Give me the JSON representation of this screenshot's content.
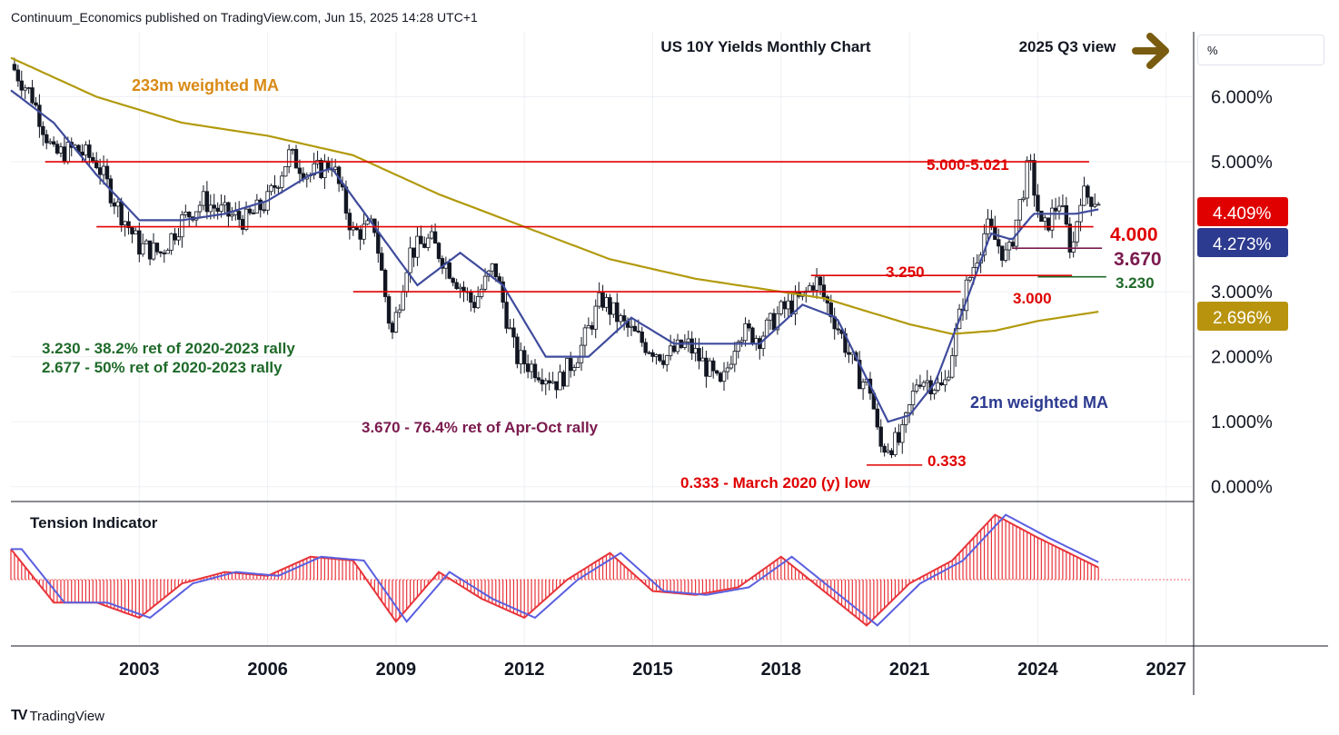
{
  "header": {
    "published_by": "Continuum_Economics published on TradingView.com, Jun 15, 2025 14:28 UTC+1"
  },
  "footer": {
    "brand": "TradingView"
  },
  "unit_label": "%",
  "colors": {
    "ma233": "#b29a0d",
    "ma21": "#3f4b9c",
    "red_line": "#e00000",
    "green_label": "#1f6a2a",
    "purple_label": "#7a1a4e",
    "up_candle": "#ffffff",
    "down_candle": "#131722",
    "tension_up": "#e8343a",
    "tension_signal": "#5a5fe0",
    "arrow": "#7a5c10"
  },
  "annotations": {
    "title": "US 10Y Yields Monthly Chart",
    "view": "2025 Q3 view",
    "ma233_label": "233m weighted MA",
    "ma21_label": "21m weighted MA",
    "resistance_label": "5.000-5.021",
    "level_4000": "4.000",
    "level_3670": "3.670",
    "level_3250": "3.250",
    "level_3230": "3.230",
    "level_3000": "3.000",
    "level_0333": "0.333",
    "fib1": "3.230 - 38.2% ret of 2020-2023 rally",
    "fib2": "2.677 - 50% ret of 2020-2023 rally",
    "fib3": "3.670 - 76.4% ret of Apr-Oct rally",
    "low_note": "0.333 - March 2020 (y) low",
    "tension_title": "Tension Indicator"
  },
  "price_badges": {
    "last": "4.409%",
    "ma21": "4.273%",
    "ma233": "2.696%"
  },
  "chart_data": [
    {
      "type": "candlestick",
      "title": "US 10Y Yields Monthly Chart",
      "y_unit": "%",
      "ylim": [
        -0.2,
        7.0
      ],
      "yticks": [
        "6.000%",
        "5.000%",
        "3.000%",
        "2.000%",
        "1.000%",
        "0.000%"
      ],
      "ytick_values": [
        6,
        5,
        3,
        2,
        1,
        0
      ],
      "xlim": [
        2000.0,
        2027.6
      ],
      "xticks": [
        "2003",
        "2006",
        "2009",
        "2012",
        "2015",
        "2018",
        "2021",
        "2024",
        "2027"
      ],
      "xtick_values": [
        2003,
        2006,
        2009,
        2012,
        2015,
        2018,
        2021,
        2024,
        2027
      ],
      "grid": true,
      "series": [
        {
          "name": "",
          "x": [
            2000.0,
            2000.5,
            2001.0,
            2001.5,
            2002.0,
            2002.5,
            2003.0,
            2003.5,
            2004.0,
            2004.5,
            2005.0,
            2005.5,
            2006.0,
            2006.5,
            2007.0,
            2007.5,
            2008.0,
            2008.5,
            2008.9,
            2009.3,
            2009.8,
            2010.3,
            2010.8,
            2011.3,
            2011.8,
            2012.3,
            2012.8,
            2013.3,
            2013.8,
            2014.3,
            2014.8,
            2015.3,
            2015.8,
            2016.3,
            2016.6,
            2017.0,
            2017.5,
            2018.0,
            2018.5,
            2018.8,
            2019.3,
            2019.8,
            2020.1,
            2020.3,
            2020.8,
            2021.2,
            2021.8,
            2022.3,
            2022.8,
            2023.3,
            2023.8,
            2024.1,
            2024.5,
            2024.8,
            2025.0,
            2025.45
          ],
          "y": [
            6.5,
            6.0,
            5.1,
            5.2,
            5.0,
            4.3,
            3.7,
            3.6,
            4.1,
            4.4,
            4.2,
            4.1,
            4.4,
            5.1,
            4.8,
            5.0,
            3.9,
            4.0,
            2.3,
            3.6,
            3.8,
            3.3,
            2.8,
            3.4,
            2.0,
            1.8,
            1.6,
            2.1,
            2.9,
            2.5,
            2.2,
            2.0,
            2.2,
            1.8,
            1.5,
            2.4,
            2.3,
            2.7,
            2.9,
            3.2,
            2.5,
            1.7,
            1.5,
            0.6,
            0.7,
            1.7,
            1.5,
            3.0,
            4.0,
            3.5,
            5.0,
            3.9,
            4.4,
            3.6,
            4.5,
            4.41
          ]
        }
      ],
      "moving_averages": [
        {
          "name": "233m weighted MA",
          "x": [
            2000.0,
            2002.0,
            2004.0,
            2006.0,
            2008.0,
            2010.0,
            2012.0,
            2014.0,
            2016.0,
            2018.0,
            2019.0,
            2020.0,
            2021.0,
            2022.0,
            2023.0,
            2024.0,
            2025.45
          ],
          "y": [
            6.6,
            6.0,
            5.6,
            5.4,
            5.1,
            4.5,
            4.0,
            3.5,
            3.2,
            3.0,
            2.9,
            2.7,
            2.5,
            2.35,
            2.4,
            2.55,
            2.696
          ]
        },
        {
          "name": "21m weighted MA",
          "x": [
            2000.0,
            2001.0,
            2002.0,
            2003.0,
            2004.0,
            2005.0,
            2006.0,
            2007.0,
            2007.5,
            2008.5,
            2009.5,
            2010.5,
            2011.5,
            2012.5,
            2013.5,
            2014.5,
            2015.5,
            2016.5,
            2017.5,
            2018.5,
            2019.3,
            2019.9,
            2020.5,
            2021.0,
            2021.6,
            2022.3,
            2022.9,
            2023.4,
            2023.9,
            2024.4,
            2024.9,
            2025.45
          ],
          "y": [
            6.1,
            5.6,
            4.8,
            4.1,
            4.1,
            4.2,
            4.4,
            4.8,
            4.9,
            4.0,
            3.1,
            3.6,
            3.1,
            2.0,
            2.0,
            2.6,
            2.2,
            2.2,
            2.2,
            2.8,
            2.6,
            1.8,
            1.0,
            1.1,
            1.6,
            2.8,
            3.9,
            3.8,
            4.2,
            4.2,
            4.2,
            4.273
          ]
        }
      ],
      "levels": [
        {
          "label": "5.000-5.021",
          "value": 5.0
        },
        {
          "label": "4.000",
          "value": 4.0
        },
        {
          "label": "3.670",
          "value": 3.67
        },
        {
          "label": "3.250",
          "value": 3.25
        },
        {
          "label": "3.230",
          "value": 3.23
        },
        {
          "label": "3.000",
          "value": 3.0
        },
        {
          "label": "0.333",
          "value": 0.333
        }
      ]
    },
    {
      "type": "bar",
      "title": "Tension Indicator",
      "x": [
        2000.0,
        2001.0,
        2002.0,
        2003.0,
        2004.0,
        2005.0,
        2006.0,
        2007.0,
        2008.0,
        2009.0,
        2010.0,
        2011.0,
        2012.0,
        2013.0,
        2014.0,
        2015.0,
        2016.0,
        2017.0,
        2018.0,
        2019.0,
        2020.0,
        2021.0,
        2022.0,
        2023.0,
        2024.0,
        2025.45
      ],
      "values": [
        0.8,
        -0.6,
        -0.6,
        -1.0,
        -0.1,
        0.2,
        0.1,
        0.6,
        0.5,
        -1.1,
        0.2,
        -0.5,
        -1.0,
        0.0,
        0.7,
        -0.3,
        -0.4,
        -0.2,
        0.6,
        -0.3,
        -1.2,
        -0.1,
        0.5,
        1.7,
        1.1,
        0.3
      ]
    }
  ]
}
